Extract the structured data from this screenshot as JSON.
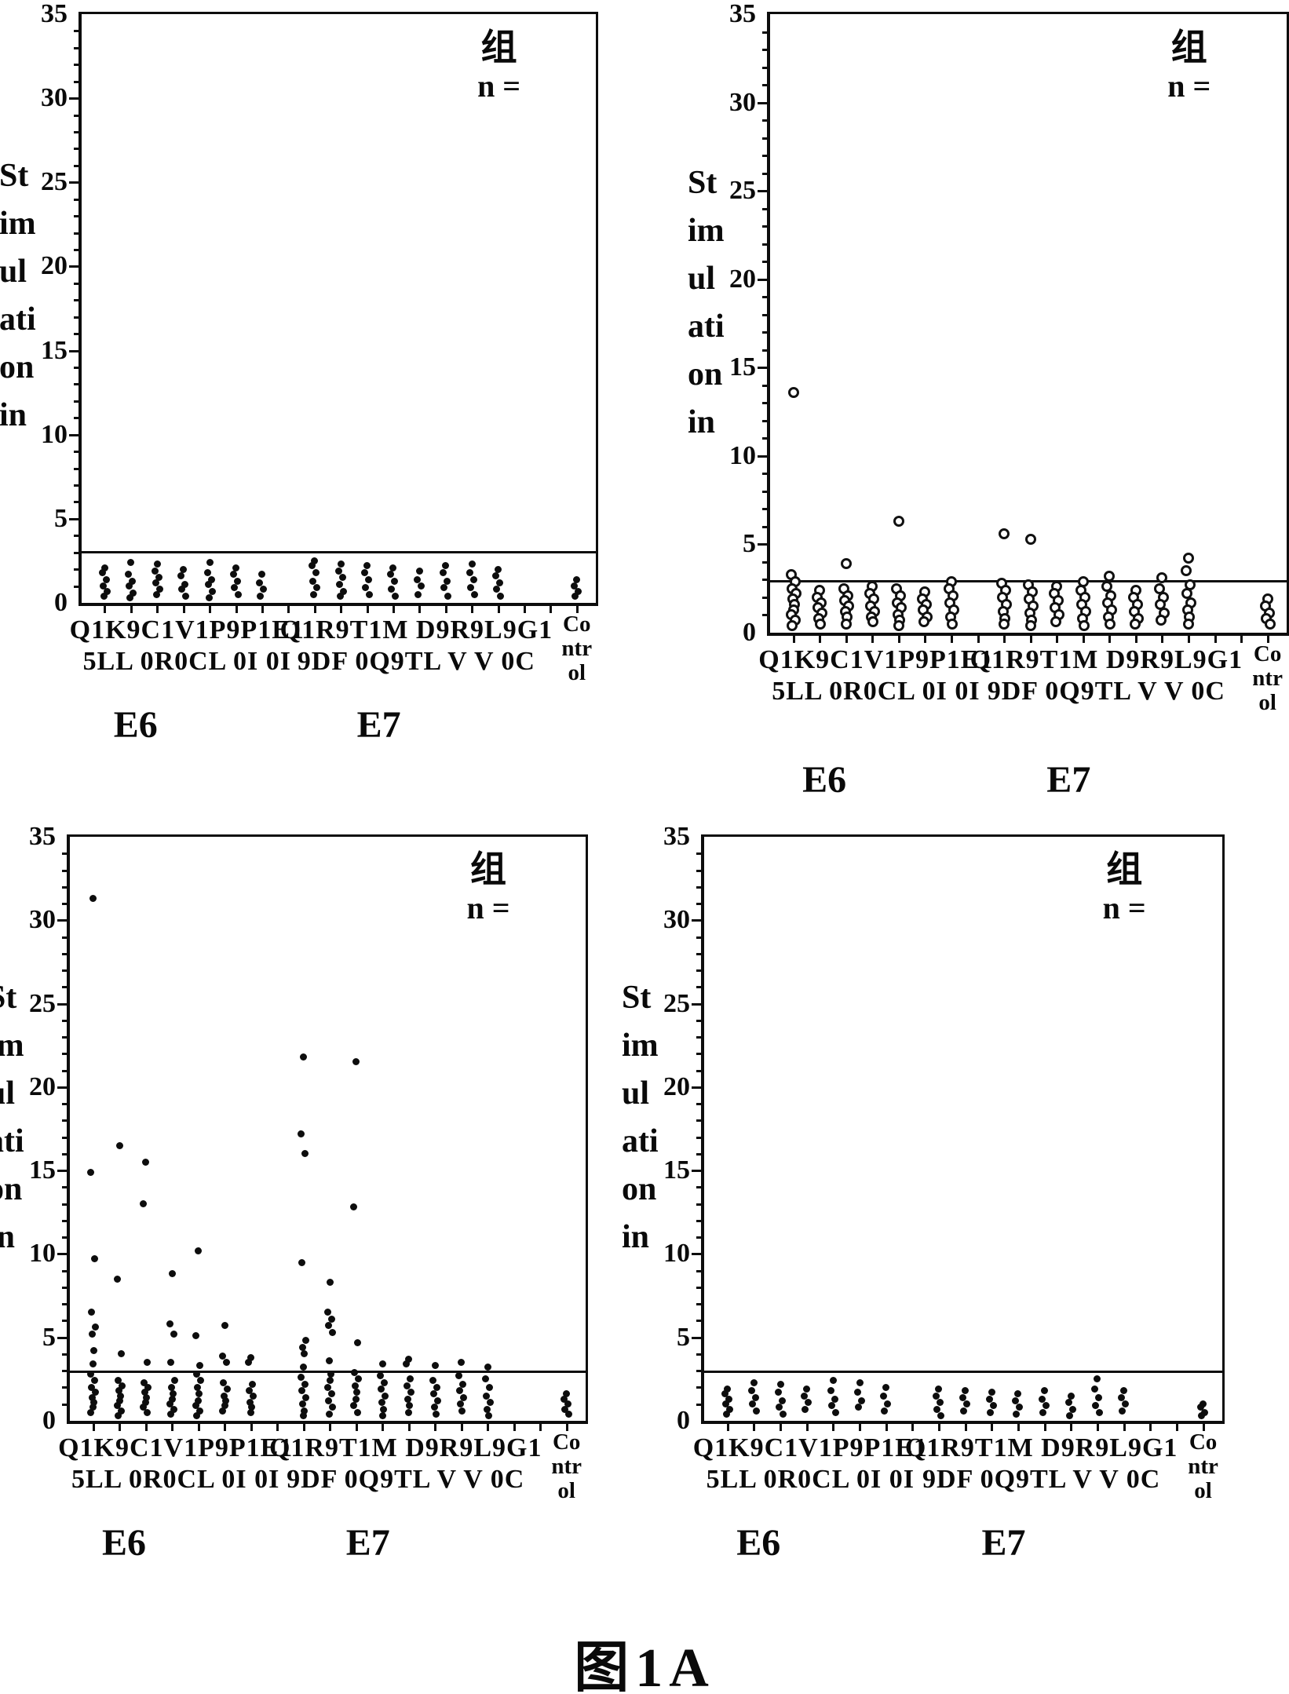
{
  "figure": {
    "caption": "图1A"
  },
  "axis": {
    "y_title_lines": [
      "St",
      "im",
      "ul",
      "ati",
      "on",
      "in"
    ],
    "y_ticks": [
      0,
      5,
      10,
      15,
      20,
      25,
      30,
      35
    ],
    "y_max": 35,
    "cutoff_value": 3.05,
    "legend_line1": "组",
    "legend_line2": "n =",
    "x_groups": {
      "e6": {
        "label": "E6",
        "line1": "Q1K9C1V1P9P1E1",
        "line2": "5LL 0R0CL 0I 0I"
      },
      "e7": {
        "label": "E7",
        "line1": "Q1R9T1M D9R9L9G1",
        "line2": "9DF 0Q9TL V V 0C"
      },
      "control_lines": [
        "Co",
        "ntr",
        "ol"
      ]
    }
  },
  "chart_data": [
    {
      "type": "scatter",
      "position": "top-left",
      "marker": "dot",
      "ylabel": "Stimulation index",
      "ylim": [
        0,
        35
      ],
      "cutoff": 3.05,
      "categories": [
        "Q15LL",
        "K90R0",
        "C1CL",
        "V10I",
        "P90I",
        "P1",
        "E1",
        "Q19DF",
        "R90Q9",
        "T1TL",
        "MV",
        "D9V",
        "R9V",
        "L90C",
        "G1",
        "Control"
      ],
      "group_of_category": [
        "E6",
        "E6",
        "E6",
        "E6",
        "E6",
        "E6",
        "E6",
        "E7",
        "E7",
        "E7",
        "E7",
        "E7",
        "E7",
        "E7",
        "E7",
        "Control"
      ],
      "columns": [
        [
          2.1,
          1.8,
          1.4,
          1.0,
          0.7,
          0.4
        ],
        [
          2.4,
          1.7,
          1.3,
          1.0,
          0.6,
          0.3
        ],
        [
          2.3,
          1.9,
          1.5,
          1.2,
          0.8,
          0.5
        ],
        [
          2.0,
          1.6,
          1.1,
          0.8,
          0.4
        ],
        [
          2.4,
          1.8,
          1.4,
          1.1,
          0.7,
          0.3
        ],
        [
          2.1,
          1.7,
          1.3,
          0.9,
          0.5
        ],
        [
          1.7,
          1.2,
          0.8,
          0.4
        ],
        [
          2.5,
          2.2,
          1.8,
          1.3,
          0.9,
          0.5
        ],
        [
          2.3,
          1.9,
          1.5,
          1.1,
          0.7,
          0.4
        ],
        [
          2.2,
          1.8,
          1.4,
          0.9,
          0.5
        ],
        [
          2.1,
          1.7,
          1.3,
          0.8,
          0.4
        ],
        [
          1.9,
          1.4,
          1.0,
          0.5
        ],
        [
          2.2,
          1.8,
          1.3,
          0.9,
          0.4
        ],
        [
          2.3,
          1.8,
          1.4,
          0.9,
          0.5
        ],
        [
          2.0,
          1.6,
          1.2,
          0.8,
          0.4
        ],
        [
          1.4,
          1.0,
          0.7,
          0.4
        ]
      ]
    },
    {
      "type": "scatter",
      "position": "top-right",
      "marker": "circle",
      "ylabel": "Stimulation index",
      "ylim": [
        0,
        35
      ],
      "cutoff": 2.95,
      "categories": [
        "Q15LL",
        "K90R0",
        "C1CL",
        "V10I",
        "P90I",
        "P1",
        "E1",
        "Q19DF",
        "R90Q9",
        "T1TL",
        "MV",
        "D9V",
        "R9V",
        "L90C",
        "G1",
        "Control"
      ],
      "group_of_category": [
        "E6",
        "E6",
        "E6",
        "E6",
        "E6",
        "E6",
        "E6",
        "E7",
        "E7",
        "E7",
        "E7",
        "E7",
        "E7",
        "E7",
        "E7",
        "Control"
      ],
      "columns": [
        [
          13.6,
          3.3,
          2.9,
          2.5,
          2.2,
          1.9,
          1.6,
          1.3,
          1.0,
          0.7,
          0.4
        ],
        [
          2.4,
          2.0,
          1.7,
          1.4,
          1.1,
          0.8,
          0.5
        ],
        [
          3.9,
          2.5,
          2.1,
          1.8,
          1.5,
          1.2,
          0.9,
          0.5
        ],
        [
          2.6,
          2.2,
          1.9,
          1.5,
          1.2,
          0.9,
          0.6
        ],
        [
          6.3,
          2.5,
          2.1,
          1.7,
          1.4,
          1.0,
          0.7,
          0.4
        ],
        [
          2.3,
          1.9,
          1.6,
          1.3,
          0.9,
          0.6
        ],
        [
          2.9,
          2.5,
          2.1,
          1.7,
          1.3,
          0.9,
          0.5
        ],
        [
          5.6,
          2.8,
          2.4,
          2.0,
          1.6,
          1.2,
          0.8,
          0.5
        ],
        [
          5.3,
          2.7,
          2.3,
          1.9,
          1.5,
          1.1,
          0.7,
          0.4
        ],
        [
          2.6,
          2.2,
          1.8,
          1.4,
          1.0,
          0.6
        ],
        [
          2.9,
          2.4,
          2.0,
          1.6,
          1.2,
          0.8,
          0.4
        ],
        [
          3.2,
          2.6,
          2.1,
          1.7,
          1.3,
          0.9,
          0.5
        ],
        [
          2.4,
          2.0,
          1.6,
          1.2,
          0.8,
          0.5
        ],
        [
          3.1,
          2.5,
          2.0,
          1.6,
          1.1,
          0.7
        ],
        [
          4.2,
          3.5,
          2.7,
          2.2,
          1.7,
          1.3,
          0.9,
          0.5
        ],
        [
          1.9,
          1.5,
          1.1,
          0.8,
          0.5
        ]
      ]
    },
    {
      "type": "scatter",
      "position": "bottom-left",
      "marker": "dot",
      "ylabel": "Stimulation index",
      "ylim": [
        0,
        35
      ],
      "cutoff": 2.95,
      "categories": [
        "Q15LL",
        "K90R0",
        "C1CL",
        "V10I",
        "P90I",
        "P1",
        "E1",
        "Q19DF",
        "R90Q9",
        "T1TL",
        "MV",
        "D9V",
        "R9V",
        "L90C",
        "G1",
        "Control"
      ],
      "group_of_category": [
        "E6",
        "E6",
        "E6",
        "E6",
        "E6",
        "E6",
        "E6",
        "E7",
        "E7",
        "E7",
        "E7",
        "E7",
        "E7",
        "E7",
        "E7",
        "Control"
      ],
      "columns": [
        [
          31.3,
          14.9,
          9.7,
          6.5,
          5.6,
          5.2,
          4.2,
          3.4,
          2.8,
          2.4,
          2.0,
          1.7,
          1.4,
          1.1,
          0.8,
          0.5
        ],
        [
          16.5,
          8.5,
          4.0,
          2.4,
          2.1,
          1.8,
          1.5,
          1.2,
          0.9,
          0.6,
          0.3
        ],
        [
          15.5,
          13.0,
          3.5,
          2.3,
          2.0,
          1.7,
          1.4,
          1.1,
          0.8,
          0.5
        ],
        [
          8.8,
          5.8,
          5.2,
          3.5,
          2.4,
          2.0,
          1.6,
          1.3,
          1.0,
          0.7,
          0.4
        ],
        [
          10.2,
          5.1,
          3.3,
          2.8,
          2.4,
          2.0,
          1.6,
          1.2,
          0.9,
          0.6,
          0.3
        ],
        [
          5.7,
          3.9,
          3.5,
          2.3,
          1.9,
          1.5,
          1.2,
          0.9,
          0.6
        ],
        [
          3.8,
          3.5,
          2.2,
          1.8,
          1.5,
          1.1,
          0.8,
          0.5
        ],
        [
          21.8,
          17.2,
          16.0,
          9.5,
          4.8,
          4.4,
          4.0,
          3.2,
          2.6,
          2.2,
          1.8,
          1.4,
          1.0,
          0.6,
          0.3
        ],
        [
          8.3,
          6.5,
          6.1,
          5.7,
          5.3,
          3.6,
          2.8,
          2.4,
          2.0,
          1.6,
          1.2,
          0.8,
          0.4
        ],
        [
          21.5,
          12.8,
          4.7,
          2.9,
          2.5,
          2.1,
          1.7,
          1.3,
          0.9,
          0.5
        ],
        [
          3.4,
          2.7,
          2.3,
          1.9,
          1.5,
          1.1,
          0.7,
          0.3
        ],
        [
          3.7,
          3.4,
          2.5,
          2.1,
          1.7,
          1.3,
          0.9,
          0.5
        ],
        [
          3.3,
          2.4,
          2.0,
          1.6,
          1.2,
          0.8,
          0.4
        ],
        [
          3.5,
          2.7,
          2.2,
          1.8,
          1.4,
          1.0,
          0.6
        ],
        [
          3.2,
          2.5,
          2.0,
          1.5,
          1.1,
          0.7,
          0.3
        ],
        [
          1.6,
          1.3,
          1.0,
          0.7,
          0.4
        ]
      ]
    },
    {
      "type": "scatter",
      "position": "bottom-right",
      "marker": "dot",
      "ylabel": "Stimulation index",
      "ylim": [
        0,
        35
      ],
      "cutoff": 2.95,
      "categories": [
        "Q15LL",
        "K90R0",
        "C1CL",
        "V10I",
        "P90I",
        "P1",
        "E1",
        "Q19DF",
        "R90Q9",
        "T1TL",
        "MV",
        "D9V",
        "R9V",
        "L90C",
        "G1",
        "Control"
      ],
      "group_of_category": [
        "E6",
        "E6",
        "E6",
        "E6",
        "E6",
        "E6",
        "E6",
        "E7",
        "E7",
        "E7",
        "E7",
        "E7",
        "E7",
        "E7",
        "E7",
        "Control"
      ],
      "columns": [
        [
          1.9,
          1.6,
          1.3,
          1.0,
          0.7,
          0.4
        ],
        [
          2.3,
          1.8,
          1.4,
          1.0,
          0.6
        ],
        [
          2.2,
          1.7,
          1.2,
          0.8,
          0.4
        ],
        [
          1.9,
          1.5,
          1.1,
          0.7
        ],
        [
          2.4,
          1.8,
          1.3,
          0.9,
          0.5
        ],
        [
          2.3,
          1.7,
          1.2,
          0.8
        ],
        [
          2.0,
          1.5,
          1.0,
          0.6
        ],
        [
          1.9,
          1.5,
          1.1,
          0.7,
          0.3
        ],
        [
          1.8,
          1.4,
          1.0,
          0.6
        ],
        [
          1.7,
          1.3,
          0.9,
          0.5
        ],
        [
          1.6,
          1.2,
          0.8,
          0.4
        ],
        [
          1.8,
          1.3,
          0.9,
          0.5
        ],
        [
          1.5,
          1.1,
          0.7,
          0.3
        ],
        [
          2.5,
          1.9,
          1.4,
          0.9,
          0.5
        ],
        [
          1.8,
          1.4,
          1.0,
          0.6
        ],
        [
          1.0,
          0.8,
          0.5,
          0.3
        ]
      ]
    }
  ]
}
